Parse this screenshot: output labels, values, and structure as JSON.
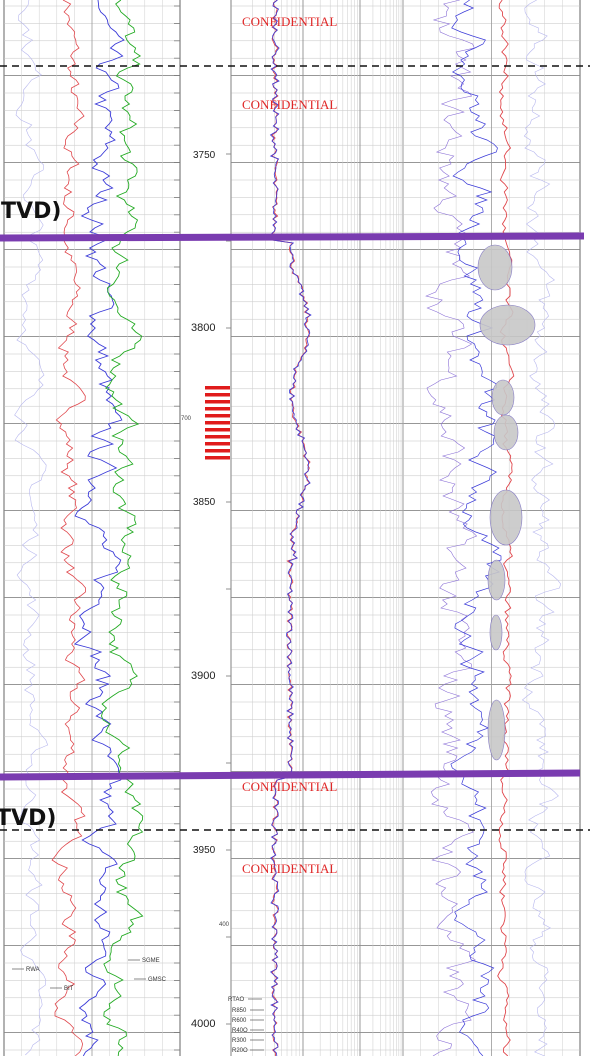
{
  "depth_track": {
    "major_labels": [
      "3750",
      "3800",
      "3850",
      "3900",
      "3950",
      "4000"
    ],
    "small_labels": [
      "700",
      "400"
    ]
  },
  "confidential_label": "CONFIDENTIAL",
  "tvd_labels": [
    "(TVD)",
    "(TVD)"
  ],
  "track1_labels": {
    "rwa": "RWA",
    "bit": "BIT",
    "sgme": "SGME",
    "gmsc": "GMSC"
  },
  "track2_labels": [
    "RTAO",
    "R850",
    "R600",
    "R40O",
    "R300",
    "R20O"
  ],
  "colors": {
    "boundary": "#7a3cb0",
    "confidential": "#e02828",
    "perforation": "#e01b1b",
    "curve_red": "#e0474c",
    "curve_blue": "#3a3ad8",
    "curve_green": "#22aa22",
    "curve_violet": "#8a6fd6",
    "fill_gray": "#c8c8c8"
  }
}
